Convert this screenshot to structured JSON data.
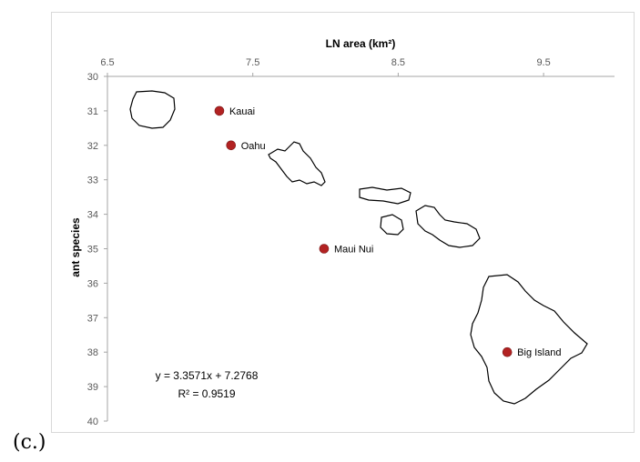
{
  "panel_label": "(c.)",
  "chart_data": {
    "type": "scatter",
    "xlabel": "LN area (km²)",
    "ylabel": "ant species",
    "xlim": [
      6.5,
      10.0
    ],
    "ylim": [
      30,
      40
    ],
    "y_inverted": true,
    "x_axis_position": "top",
    "x_ticks": [
      "6.5",
      "7.5",
      "8.5",
      "9.5"
    ],
    "y_ticks": [
      "30",
      "31",
      "32",
      "33",
      "34",
      "35",
      "36",
      "37",
      "38",
      "39",
      "40"
    ],
    "grid": false,
    "point_color": "#b22222",
    "points": [
      {
        "label": "Kauai",
        "x": 7.27,
        "y": 31
      },
      {
        "label": "Oahu",
        "x": 7.35,
        "y": 32
      },
      {
        "label": "Maui Nui",
        "x": 7.99,
        "y": 35
      },
      {
        "label": "Big Island",
        "x": 9.25,
        "y": 38
      }
    ],
    "annotations": {
      "equation": "y = 3.3571x + 7.2768",
      "r_squared": "R² = 0.9519"
    },
    "background_image": "hawaiian-islands-outline"
  }
}
